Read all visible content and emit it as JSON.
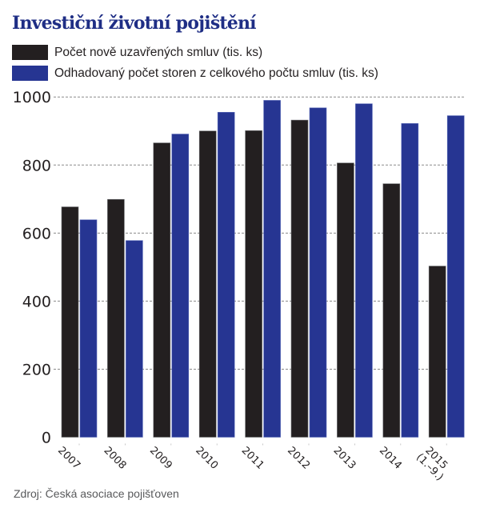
{
  "chart_data": {
    "type": "bar",
    "title": "Investiční životní pojištění",
    "xlabel": "",
    "ylabel": "",
    "ylim": [
      0,
      1000
    ],
    "yticks": [
      0,
      200,
      400,
      600,
      800,
      1000
    ],
    "grid": true,
    "legend_position": "top-left",
    "categories": [
      "2007",
      "2008",
      "2009",
      "2010",
      "2011",
      "2012",
      "2013",
      "2014",
      "2015 (1.–9.)"
    ],
    "category_lines": [
      [
        "2007"
      ],
      [
        "2008"
      ],
      [
        "2009"
      ],
      [
        "2010"
      ],
      [
        "2011"
      ],
      [
        "2012"
      ],
      [
        "2013"
      ],
      [
        "2014"
      ],
      [
        "2015",
        "(1.–9.)"
      ]
    ],
    "series": [
      {
        "name": "Počet nově uzavřených smluv (tis. ks)",
        "color": "#231f20",
        "values": [
          677,
          699,
          865,
          900,
          901,
          932,
          806,
          745,
          503
        ]
      },
      {
        "name": "Odhadovaný počet storen z celkového počtu smluv (tis. ks)",
        "color": "#263592",
        "values": [
          639,
          578,
          891,
          955,
          990,
          968,
          980,
          922,
          945
        ]
      }
    ],
    "source": "Zdroj: Česká asociace pojišťoven"
  }
}
